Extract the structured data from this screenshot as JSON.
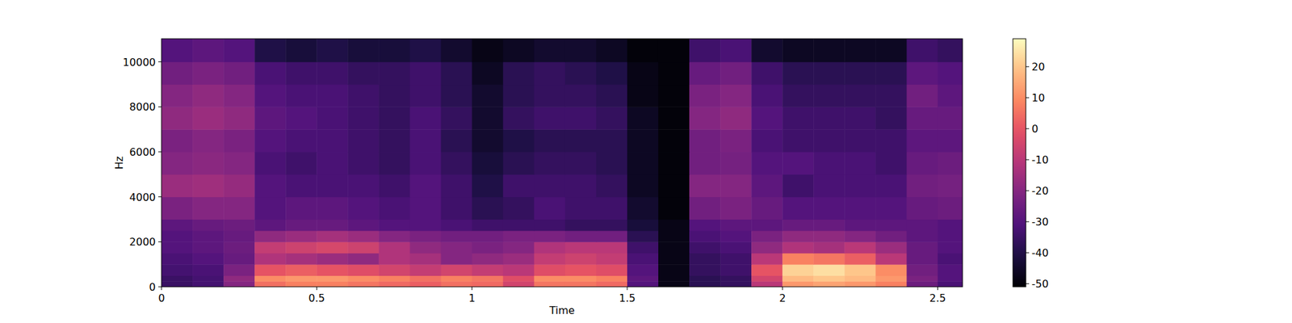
{
  "chart_data": {
    "type": "heatmap",
    "x_label": "Time",
    "y_label": "Hz",
    "xlim": [
      0,
      2.58
    ],
    "ylim": [
      0,
      11025
    ],
    "xticks": [
      0,
      0.5,
      1,
      1.5,
      2,
      2.5
    ],
    "yticks": [
      0,
      2000,
      4000,
      6000,
      8000,
      10000
    ],
    "x_bins": [
      0,
      0.1,
      0.2,
      0.3,
      0.4,
      0.5,
      0.6,
      0.7,
      0.8,
      0.9,
      1.0,
      1.1,
      1.2,
      1.3,
      1.4,
      1.5,
      1.6,
      1.7,
      1.8,
      1.9,
      2.0,
      2.1,
      2.2,
      2.3,
      2.4,
      2.5,
      2.58
    ],
    "y_bins": [
      0,
      250,
      500,
      1000,
      1500,
      2000,
      2500,
      3000,
      4000,
      5000,
      6000,
      7000,
      8000,
      9000,
      10000,
      11025
    ],
    "cells": [
      [
        -35,
        -33,
        -20,
        5,
        8,
        8,
        6,
        4,
        2,
        5,
        4,
        -5,
        6,
        6,
        4,
        -30,
        -48,
        -38,
        -36,
        -10,
        12,
        14,
        12,
        8,
        -25,
        -32
      ],
      [
        -35,
        -33,
        -18,
        10,
        12,
        12,
        10,
        8,
        5,
        8,
        6,
        -2,
        10,
        10,
        8,
        -28,
        -48,
        -38,
        -36,
        -5,
        18,
        20,
        18,
        12,
        -22,
        -30
      ],
      [
        -33,
        -32,
        -22,
        0,
        2,
        0,
        -2,
        -5,
        -8,
        -5,
        -8,
        -10,
        -2,
        0,
        -2,
        -30,
        -48,
        -36,
        -34,
        0,
        22,
        24,
        20,
        10,
        -24,
        -30
      ],
      [
        -32,
        -30,
        -26,
        -12,
        -14,
        -16,
        -18,
        -12,
        -14,
        -20,
        -18,
        -16,
        -8,
        -6,
        -8,
        -32,
        -48,
        -36,
        -34,
        -10,
        8,
        6,
        2,
        -10,
        -26,
        -32
      ],
      [
        -30,
        -28,
        -25,
        -8,
        -6,
        -4,
        -6,
        -12,
        -18,
        -20,
        -22,
        -20,
        -12,
        -10,
        -10,
        -34,
        -48,
        -34,
        -32,
        -18,
        -12,
        -14,
        -10,
        -16,
        -26,
        -30
      ],
      [
        -30,
        -28,
        -26,
        -18,
        -16,
        -14,
        -16,
        -20,
        -22,
        -24,
        -24,
        -22,
        -22,
        -24,
        -24,
        -38,
        -48,
        -32,
        -30,
        -22,
        -18,
        -18,
        -20,
        -24,
        -28,
        -30
      ],
      [
        -28,
        -26,
        -25,
        -28,
        -26,
        -26,
        -28,
        -30,
        -30,
        -32,
        -34,
        -34,
        -34,
        -36,
        -36,
        -42,
        -48,
        -30,
        -28,
        -28,
        -26,
        -26,
        -28,
        -28,
        -28,
        -30
      ],
      [
        -22,
        -20,
        -20,
        -30,
        -28,
        -28,
        -30,
        -32,
        -30,
        -34,
        -38,
        -36,
        -32,
        -34,
        -34,
        -44,
        -50,
        -24,
        -22,
        -26,
        -30,
        -30,
        -30,
        -30,
        -26,
        -25
      ],
      [
        -16,
        -15,
        -17,
        -30,
        -32,
        -32,
        -32,
        -34,
        -30,
        -34,
        -40,
        -34,
        -34,
        -34,
        -36,
        -46,
        -50,
        -20,
        -20,
        -28,
        -34,
        -32,
        -32,
        -32,
        -24,
        -23
      ],
      [
        -20,
        -19,
        -20,
        -32,
        -34,
        -32,
        -34,
        -36,
        -32,
        -36,
        -42,
        -38,
        -36,
        -36,
        -38,
        -46,
        -50,
        -24,
        -23,
        -30,
        -30,
        -32,
        -32,
        -34,
        -26,
        -25
      ],
      [
        -22,
        -20,
        -22,
        -30,
        -32,
        -32,
        -34,
        -36,
        -32,
        -38,
        -44,
        -40,
        -38,
        -38,
        -38,
        -46,
        -50,
        -24,
        -22,
        -32,
        -34,
        -34,
        -34,
        -34,
        -28,
        -28
      ],
      [
        -18,
        -16,
        -18,
        -28,
        -30,
        -32,
        -34,
        -36,
        -32,
        -36,
        -44,
        -36,
        -34,
        -34,
        -36,
        -46,
        -50,
        -20,
        -18,
        -30,
        -34,
        -34,
        -34,
        -36,
        -26,
        -26
      ],
      [
        -20,
        -18,
        -20,
        -30,
        -32,
        -32,
        -34,
        -36,
        -34,
        -38,
        -44,
        -38,
        -36,
        -36,
        -38,
        -48,
        -50,
        -22,
        -20,
        -32,
        -36,
        -36,
        -36,
        -36,
        -24,
        -28
      ],
      [
        -24,
        -22,
        -24,
        -32,
        -34,
        -34,
        -36,
        -36,
        -34,
        -38,
        -46,
        -38,
        -36,
        -38,
        -40,
        -48,
        -50,
        -26,
        -24,
        -34,
        -38,
        -38,
        -38,
        -38,
        -28,
        -30
      ],
      [
        -30,
        -28,
        -30,
        -40,
        -42,
        -40,
        -42,
        -42,
        -40,
        -44,
        -48,
        -46,
        -44,
        -44,
        -46,
        -50,
        -50,
        -34,
        -32,
        -44,
        -46,
        -46,
        -46,
        -46,
        -34,
        -36
      ]
    ],
    "colorbar_range": [
      -51,
      29
    ],
    "colorbar_ticks": [
      -50,
      -40,
      -30,
      -20,
      -10,
      0,
      10,
      20
    ]
  }
}
